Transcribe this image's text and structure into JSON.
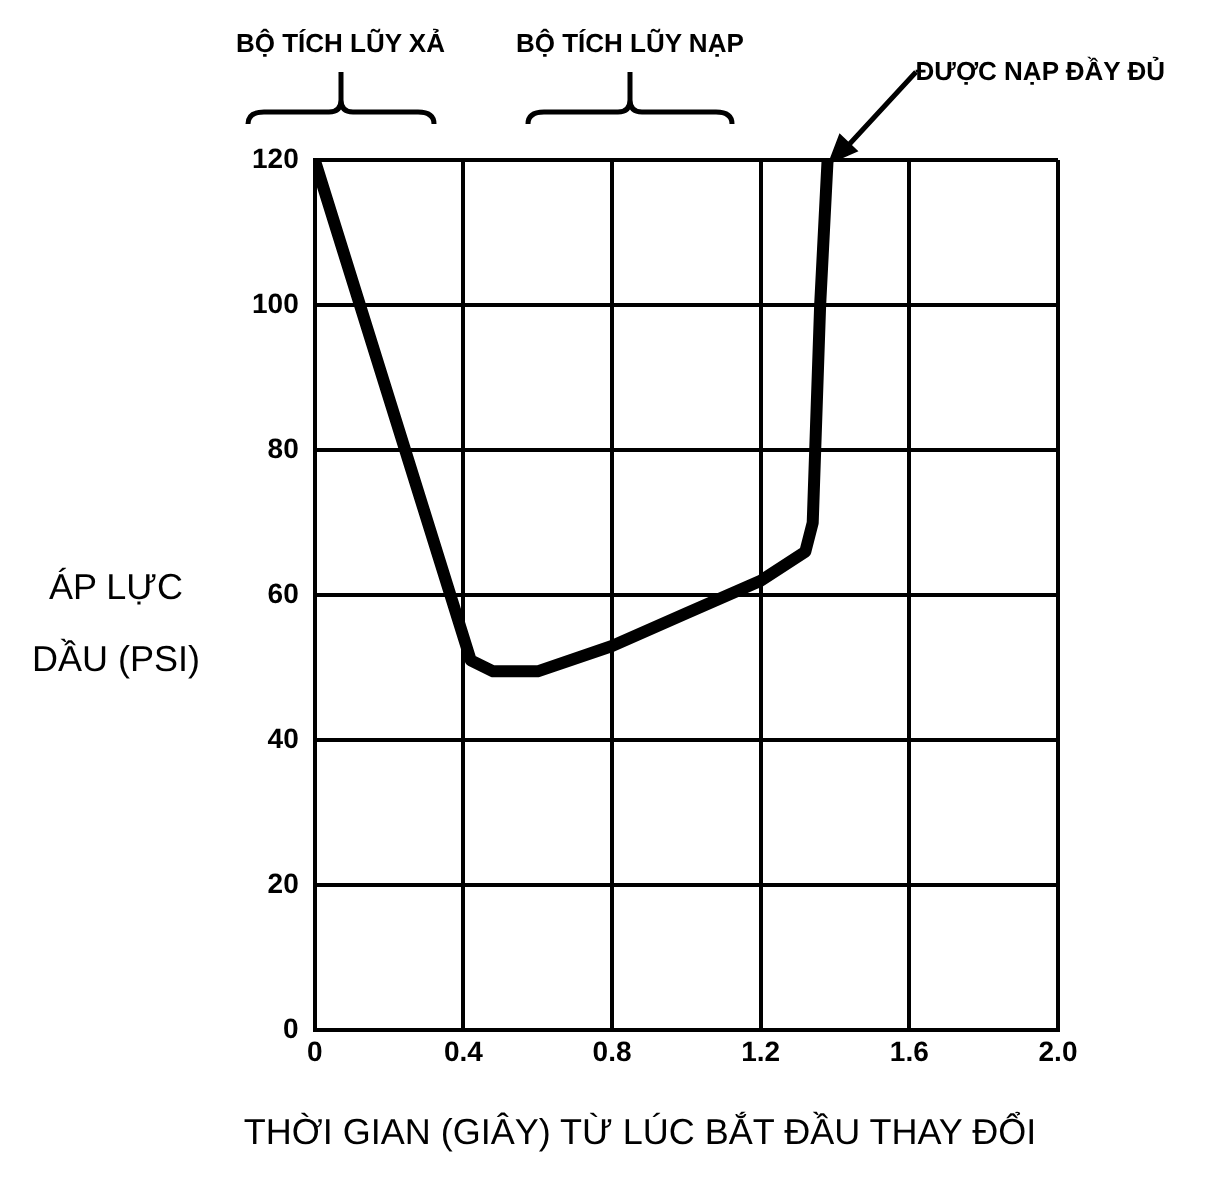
{
  "chart_data": {
    "type": "line",
    "xlabel": "THỜI GIAN (GIÂY) TỪ LÚC BẮT ĐẦU THAY ĐỔI",
    "ylabel": "ÁP LỰC DẦU (PSI)",
    "xlim": [
      0,
      2
    ],
    "xticks": [
      0,
      0.4,
      0.8,
      1.2,
      1.6,
      {
        "value": 2,
        "label": "2.0"
      }
    ],
    "ylim": [
      0,
      120
    ],
    "yticks": [
      0,
      20,
      40,
      60,
      80,
      100,
      120
    ],
    "grid": true,
    "legend": false,
    "marker": "none",
    "line_style": "solid",
    "series": [
      {
        "color": "#000000",
        "x": [
          0,
          0.42,
          0.48,
          0.6,
          0.8,
          1.0,
          1.2,
          1.32,
          1.34,
          1.36,
          1.38
        ],
        "values": [
          120,
          51,
          49.5,
          49.5,
          53,
          57.5,
          62,
          66,
          70,
          100,
          120
        ]
      }
    ],
    "annotations": [
      "BỘ TÍCH LŨY XẢ",
      "BỘ TÍCH LŨY NẠP",
      "ĐƯỢC NẠP ĐẦY ĐỦ"
    ]
  }
}
